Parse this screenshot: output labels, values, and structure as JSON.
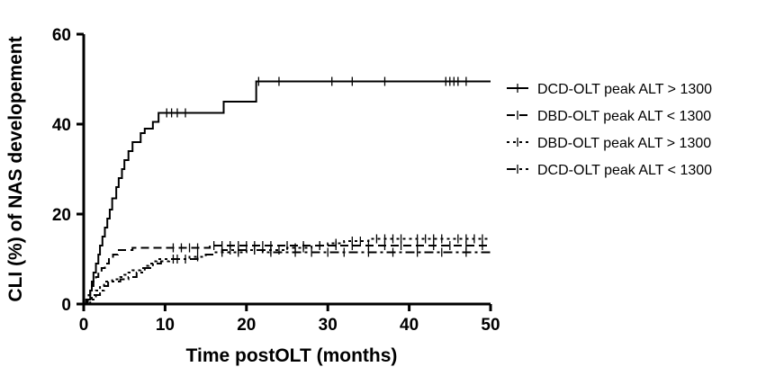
{
  "chart_data": {
    "type": "line",
    "xlabel": "Time postOLT (months)",
    "ylabel": "CLI (%) of NAS developement",
    "xlim": [
      0,
      50
    ],
    "ylim": [
      0,
      60
    ],
    "xticks": [
      0,
      10,
      20,
      30,
      40,
      50
    ],
    "yticks": [
      0,
      20,
      40,
      60
    ],
    "grid": false,
    "legend_position": "right",
    "series": [
      {
        "name": "DCD-OLT peak ALT > 1300",
        "dash": "",
        "points": [
          [
            0,
            0
          ],
          [
            0.5,
            1
          ],
          [
            0.8,
            3
          ],
          [
            1.0,
            5
          ],
          [
            1.2,
            7
          ],
          [
            1.5,
            9
          ],
          [
            1.8,
            11
          ],
          [
            2.0,
            13
          ],
          [
            2.3,
            15
          ],
          [
            2.6,
            17
          ],
          [
            2.9,
            19
          ],
          [
            3.2,
            21
          ],
          [
            3.5,
            23.5
          ],
          [
            4.0,
            26
          ],
          [
            4.3,
            28
          ],
          [
            4.7,
            30
          ],
          [
            5.0,
            32
          ],
          [
            5.5,
            34
          ],
          [
            6.0,
            36
          ],
          [
            7.0,
            38
          ],
          [
            7.5,
            39
          ],
          [
            8.5,
            40.5
          ],
          [
            9.2,
            42.5
          ],
          [
            11.0,
            42.5
          ],
          [
            14.0,
            42.5
          ],
          [
            17.2,
            45
          ],
          [
            21.0,
            45
          ],
          [
            21.2,
            49.5
          ],
          [
            50,
            49.5
          ]
        ],
        "censors": [
          [
            10.2,
            42.5
          ],
          [
            10.8,
            42.5
          ],
          [
            11.5,
            42.5
          ],
          [
            12.5,
            42.5
          ],
          [
            21.5,
            49.5
          ],
          [
            24,
            49.5
          ],
          [
            30.5,
            49.5
          ],
          [
            33,
            49.5
          ],
          [
            37,
            49.5
          ],
          [
            44.5,
            49.5
          ],
          [
            45,
            49.5
          ],
          [
            45.5,
            49.5
          ],
          [
            46,
            49.5
          ],
          [
            47,
            49.5
          ]
        ]
      },
      {
        "name": "DBD-OLT peak ALT < 1300",
        "dash": "9 5",
        "points": [
          [
            0,
            0
          ],
          [
            0.3,
            1
          ],
          [
            0.6,
            2
          ],
          [
            0.8,
            3
          ],
          [
            1.0,
            4
          ],
          [
            1.2,
            5
          ],
          [
            1.5,
            6
          ],
          [
            1.8,
            7
          ],
          [
            2.2,
            8
          ],
          [
            2.6,
            9
          ],
          [
            3.1,
            10
          ],
          [
            3.6,
            11
          ],
          [
            4.2,
            12
          ],
          [
            5.0,
            12
          ],
          [
            6.0,
            12.5
          ],
          [
            8.0,
            12.5
          ],
          [
            10.0,
            12.5
          ],
          [
            15.0,
            12.5
          ],
          [
            15.5,
            13
          ],
          [
            50,
            13
          ]
        ],
        "censors": [
          [
            11,
            12.5
          ],
          [
            12,
            12.5
          ],
          [
            13,
            12.5
          ],
          [
            14,
            12.5
          ],
          [
            16,
            13
          ],
          [
            17,
            13
          ],
          [
            18,
            13
          ],
          [
            19,
            13
          ],
          [
            20,
            13
          ],
          [
            21,
            13
          ],
          [
            22,
            13
          ],
          [
            23,
            13
          ],
          [
            25,
            13
          ],
          [
            27,
            13
          ],
          [
            29,
            13
          ],
          [
            31,
            13
          ],
          [
            33,
            13
          ],
          [
            35,
            13
          ],
          [
            37,
            13
          ],
          [
            39,
            13
          ],
          [
            41,
            13
          ],
          [
            43,
            13
          ],
          [
            45,
            13
          ],
          [
            47,
            13
          ],
          [
            49,
            13
          ]
        ]
      },
      {
        "name": "DBD-OLT peak ALT > 1300",
        "dash": "3 4",
        "points": [
          [
            0,
            0
          ],
          [
            0.5,
            1
          ],
          [
            1.0,
            2
          ],
          [
            1.5,
            3
          ],
          [
            2.0,
            4
          ],
          [
            2.5,
            5
          ],
          [
            3.5,
            5.5
          ],
          [
            4.5,
            6
          ],
          [
            5.0,
            6.5
          ],
          [
            5.5,
            7
          ],
          [
            6.0,
            7.5
          ],
          [
            7.0,
            8
          ],
          [
            7.5,
            8.5
          ],
          [
            8.0,
            9
          ],
          [
            8.5,
            9.5
          ],
          [
            9.0,
            10
          ],
          [
            10.0,
            10
          ],
          [
            12.0,
            10
          ],
          [
            13.0,
            10.5
          ],
          [
            15.0,
            11
          ],
          [
            16.0,
            11.5
          ],
          [
            18.0,
            11.5
          ],
          [
            20.0,
            12
          ],
          [
            22.0,
            12
          ],
          [
            25.0,
            12.5
          ],
          [
            28.0,
            13
          ],
          [
            30.0,
            13.5
          ],
          [
            32.0,
            14
          ],
          [
            35.0,
            14.5
          ],
          [
            40.0,
            14.5
          ],
          [
            45.0,
            14.5
          ],
          [
            50,
            14.5
          ]
        ],
        "censors": [
          [
            11,
            10
          ],
          [
            14,
            10.5
          ],
          [
            17,
            11.5
          ],
          [
            19,
            11.5
          ],
          [
            21,
            12
          ],
          [
            23,
            12
          ],
          [
            24,
            12
          ],
          [
            26,
            12.5
          ],
          [
            27,
            12.5
          ],
          [
            29,
            13
          ],
          [
            31,
            13.5
          ],
          [
            33,
            14
          ],
          [
            34,
            14
          ],
          [
            36,
            14.5
          ],
          [
            37,
            14.5
          ],
          [
            38,
            14.5
          ],
          [
            39,
            14.5
          ],
          [
            41,
            14.5
          ],
          [
            42,
            14.5
          ],
          [
            43,
            14.5
          ],
          [
            44,
            14.5
          ],
          [
            46,
            14.5
          ],
          [
            47,
            14.5
          ],
          [
            48,
            14.5
          ],
          [
            49,
            14.5
          ]
        ]
      },
      {
        "name": "DCD-OLT peak ALT < 1300",
        "dash": "10 4 3 4",
        "points": [
          [
            0,
            0
          ],
          [
            0.8,
            1
          ],
          [
            1.5,
            2
          ],
          [
            2.0,
            3
          ],
          [
            2.5,
            4
          ],
          [
            3.0,
            5
          ],
          [
            4.5,
            5.5
          ],
          [
            5.5,
            6
          ],
          [
            6.5,
            7
          ],
          [
            7.5,
            8
          ],
          [
            8.5,
            9
          ],
          [
            9.5,
            9.5
          ],
          [
            10.5,
            10
          ],
          [
            13.0,
            10
          ],
          [
            14.0,
            10.5
          ],
          [
            15.0,
            11
          ],
          [
            16.0,
            11.5
          ],
          [
            17.0,
            12
          ],
          [
            20.0,
            12
          ],
          [
            22.0,
            11.5
          ],
          [
            25.0,
            11.5
          ],
          [
            50,
            11.5
          ]
        ],
        "censors": [
          [
            11.5,
            10
          ],
          [
            12.5,
            10
          ],
          [
            18,
            12
          ],
          [
            19,
            12
          ],
          [
            21,
            12
          ],
          [
            23,
            11.5
          ],
          [
            26,
            11.5
          ],
          [
            28,
            11.5
          ],
          [
            30,
            11.5
          ],
          [
            32,
            11.5
          ],
          [
            35,
            11.5
          ],
          [
            38,
            11.5
          ],
          [
            41,
            11.5
          ],
          [
            44,
            11.5
          ],
          [
            47,
            11.5
          ]
        ]
      }
    ]
  }
}
